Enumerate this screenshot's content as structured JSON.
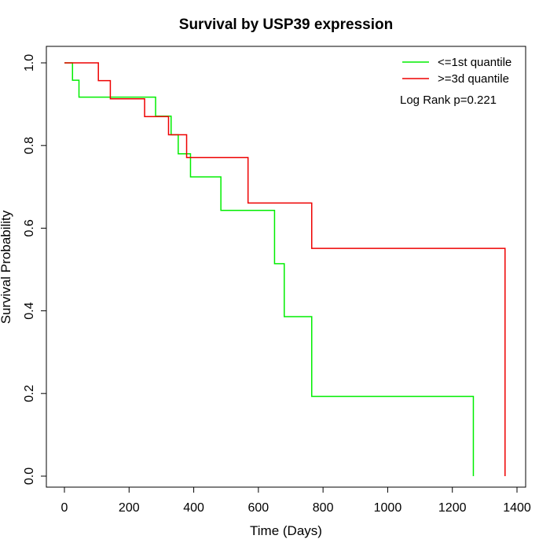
{
  "chart_data": {
    "type": "line",
    "step": true,
    "title": "Survival by USP39 expression",
    "xlabel": "Time (Days)",
    "ylabel": "Survival Probability",
    "xlim": [
      0,
      1400
    ],
    "ylim": [
      0,
      1.0
    ],
    "x_ticks": [
      0,
      200,
      400,
      600,
      800,
      1000,
      1200,
      1400
    ],
    "y_ticks": [
      0.0,
      0.2,
      0.4,
      0.6,
      0.8,
      1.0
    ],
    "x_tick_labels": [
      "0",
      "200",
      "400",
      "600",
      "800",
      "1000",
      "1200",
      "1400"
    ],
    "y_tick_labels": [
      "0.0",
      "0.2",
      "0.4",
      "0.6",
      "0.8",
      "1.0"
    ],
    "grid": false,
    "legend_position": "top-right",
    "annotation": "Log Rank p=0.221",
    "series": [
      {
        "name": "<=1st quantile",
        "color": "#00ee00",
        "x": [
          0,
          25,
          45,
          282,
          330,
          352,
          390,
          484,
          650,
          680,
          765,
          1265,
          1265
        ],
        "y": [
          1.0,
          0.958,
          0.917,
          0.871,
          0.826,
          0.78,
          0.724,
          0.643,
          0.514,
          0.386,
          0.193,
          0.193,
          0.0
        ]
      },
      {
        "name": ">=3d quantile",
        "color": "#ee0000",
        "x": [
          0,
          105,
          142,
          248,
          322,
          378,
          568,
          765,
          1363,
          1363
        ],
        "y": [
          1.0,
          0.957,
          0.913,
          0.87,
          0.826,
          0.771,
          0.661,
          0.551,
          0.551,
          0.0
        ]
      }
    ]
  }
}
